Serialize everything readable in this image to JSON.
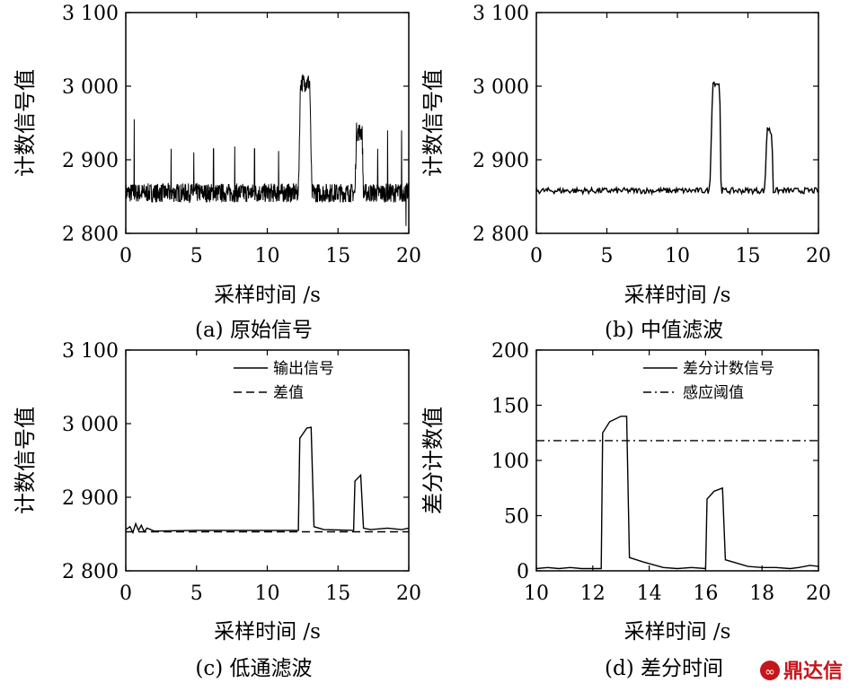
{
  "chart_data": [
    {
      "id": "a",
      "type": "line",
      "caption": "(a) 原始信号",
      "xlabel": "采样时间 /s",
      "ylabel": "计数信号值",
      "xlim": [
        0,
        20
      ],
      "ylim": [
        2800,
        3100
      ],
      "xticks": [
        0,
        5,
        10,
        15,
        20
      ],
      "yticks": [
        2800,
        2900,
        3000,
        3100
      ],
      "ytick_labels": [
        "2 800",
        "2 900",
        "3 000",
        "3 100"
      ],
      "series": [
        {
          "style": "noisy",
          "x": [
            0,
            12.2,
            12.35,
            13.0,
            13.15,
            16.2,
            16.3,
            16.7,
            16.8,
            20
          ],
          "y": [
            2855,
            2855,
            3005,
            3005,
            2855,
            2855,
            2938,
            2938,
            2855,
            2855
          ],
          "spikes": [
            [
              0.6,
              2955
            ],
            [
              3.2,
              2915
            ],
            [
              4.8,
              2910
            ],
            [
              6.2,
              2915
            ],
            [
              7.7,
              2918
            ],
            [
              9.1,
              2915
            ],
            [
              10.8,
              2912
            ],
            [
              17.8,
              2915
            ],
            [
              18.5,
              2940
            ],
            [
              19.5,
              2940
            ],
            [
              19.8,
              2810
            ]
          ]
        }
      ]
    },
    {
      "id": "b",
      "type": "line",
      "caption": "(b) 中值滤波",
      "xlabel": "采样时间 /s",
      "ylabel": "计数信号值",
      "xlim": [
        0,
        20
      ],
      "ylim": [
        2800,
        3100
      ],
      "xticks": [
        0,
        5,
        10,
        15,
        20
      ],
      "yticks": [
        2800,
        2900,
        3000,
        3100
      ],
      "ytick_labels": [
        "2 800",
        "2 900",
        "3 000",
        "3 100"
      ],
      "series": [
        {
          "style": "jitter",
          "x": [
            0,
            12.3,
            12.5,
            13.0,
            13.1,
            16.2,
            16.35,
            16.7,
            16.8,
            20
          ],
          "y": [
            2858,
            2858,
            3005,
            3003,
            2858,
            2858,
            2945,
            2935,
            2858,
            2858
          ]
        }
      ]
    },
    {
      "id": "c",
      "type": "line",
      "caption": "(c) 低通滤波",
      "xlabel": "采样时间 /s",
      "ylabel": "计数信号值",
      "xlim": [
        0,
        20
      ],
      "ylim": [
        2800,
        3100
      ],
      "xticks": [
        0,
        5,
        10,
        15,
        20
      ],
      "yticks": [
        2800,
        2900,
        3000,
        3100
      ],
      "ytick_labels": [
        "2 800",
        "2 900",
        "3 000",
        "3 100"
      ],
      "legend": [
        "输出信号",
        "差值"
      ],
      "series": [
        {
          "name": "输出信号",
          "style": "solid",
          "x": [
            0,
            0.3,
            0.5,
            0.7,
            0.9,
            1.1,
            1.3,
            1.5,
            2,
            5,
            10,
            12.2,
            12.3,
            12.8,
            13.1,
            13.3,
            14,
            16.1,
            16.2,
            16.6,
            16.8,
            17.3,
            18.5,
            19.5,
            20
          ],
          "y": [
            2856,
            2860,
            2852,
            2864,
            2855,
            2862,
            2853,
            2858,
            2854,
            2855,
            2855,
            2855,
            2980,
            2994,
            2995,
            2860,
            2856,
            2855,
            2922,
            2930,
            2858,
            2856,
            2858,
            2856,
            2858
          ]
        },
        {
          "name": "差值",
          "style": "dashed",
          "x": [
            0,
            20
          ],
          "y": [
            2853,
            2853
          ]
        }
      ]
    },
    {
      "id": "d",
      "type": "line",
      "caption": "(d) 差分时间",
      "xlabel": "采样时间 /s",
      "ylabel": "差分计数值",
      "xlim": [
        10,
        20
      ],
      "ylim": [
        0,
        200
      ],
      "xticks": [
        10,
        12,
        14,
        16,
        18,
        20
      ],
      "yticks": [
        0,
        50,
        100,
        150,
        200
      ],
      "ytick_labels": [
        "0",
        "50",
        "100",
        "150",
        "200"
      ],
      "legend": [
        "差分计数信号",
        "感应阈值"
      ],
      "series": [
        {
          "name": "差分计数信号",
          "style": "solid",
          "x": [
            10,
            10.4,
            10.8,
            11.2,
            11.6,
            12.3,
            12.35,
            12.6,
            13.0,
            13.2,
            13.3,
            13.8,
            14.5,
            15.0,
            15.5,
            16.0,
            16.05,
            16.3,
            16.6,
            16.7,
            17.5,
            18.0,
            18.5,
            19.0,
            19.3,
            19.7,
            20
          ],
          "y": [
            2,
            3,
            2,
            3,
            2,
            2,
            125,
            135,
            140,
            140,
            12,
            8,
            3,
            2,
            3,
            2,
            65,
            72,
            75,
            10,
            4,
            3,
            3,
            2,
            3,
            5,
            4
          ]
        },
        {
          "name": "感应阈值",
          "style": "dashdot",
          "x": [
            10,
            20
          ],
          "y": [
            118,
            118
          ]
        }
      ]
    }
  ],
  "watermark": "鼎达信"
}
